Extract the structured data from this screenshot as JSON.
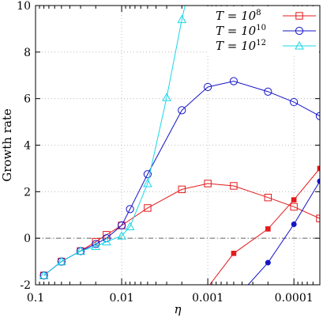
{
  "chart_data": {
    "type": "line",
    "title": "",
    "xlabel": "η",
    "ylabel": "Growth rate",
    "x_scale": "log",
    "x_reversed": true,
    "xlim": [
      0.1,
      5e-05
    ],
    "ylim": [
      -2,
      10
    ],
    "x_ticks": [
      0.1,
      0.01,
      0.001,
      0.0001
    ],
    "x_tick_labels": [
      "0.1",
      "0.01",
      "0.001",
      "0.0001"
    ],
    "y_ticks": [
      -2,
      0,
      2,
      4,
      6,
      8,
      10
    ],
    "y_tick_labels": [
      "-2",
      "0",
      "2",
      "4",
      "6",
      "8",
      "10"
    ],
    "grid": true,
    "zero_line": true,
    "legend_position": "top-right",
    "series": [
      {
        "name_prefix": "T = 10",
        "name_exp": "8",
        "color": "#e41a1c",
        "marker": "square",
        "x": [
          0.08,
          0.05,
          0.03,
          0.02,
          0.015,
          0.01,
          0.005,
          0.002,
          0.001,
          0.0005,
          0.0002,
          0.0001,
          5e-05
        ],
        "y": [
          -1.6,
          -1.0,
          -0.55,
          -0.15,
          0.15,
          0.55,
          1.3,
          2.1,
          2.35,
          2.25,
          1.75,
          1.35,
          0.85
        ]
      },
      {
        "name_prefix": "T = 10",
        "name_exp": "10",
        "color": "#1515c8",
        "marker": "circle",
        "x": [
          0.08,
          0.05,
          0.03,
          0.02,
          0.015,
          0.01,
          0.008,
          0.005,
          0.002,
          0.001,
          0.0005,
          0.0002,
          0.0001,
          5e-05
        ],
        "y": [
          -1.6,
          -1.0,
          -0.55,
          -0.25,
          0.0,
          0.55,
          1.25,
          2.75,
          5.5,
          6.5,
          6.75,
          6.3,
          5.85,
          5.25
        ]
      },
      {
        "name_prefix": "T = 10",
        "name_exp": "12",
        "color": "#19d7e6",
        "marker": "triangle",
        "x": [
          0.08,
          0.05,
          0.03,
          0.02,
          0.015,
          0.01,
          0.008,
          0.005,
          0.003,
          0.002,
          0.0016
        ],
        "y": [
          -1.6,
          -1.0,
          -0.55,
          -0.35,
          -0.15,
          0.1,
          0.5,
          2.35,
          6.05,
          9.4,
          11.0
        ]
      }
    ],
    "secondary_lines": [
      {
        "color": "#e41a1c",
        "marker": "filled-square",
        "x": [
          0.00095,
          0.0005,
          0.0002,
          0.0001,
          5e-05
        ],
        "y": [
          -2.0,
          -0.65,
          0.4,
          1.65,
          3.0
        ]
      },
      {
        "color": "#1515c8",
        "marker": "filled-circle",
        "x": [
          0.00034,
          0.0002,
          0.0001,
          5e-05
        ],
        "y": [
          -2.0,
          -1.05,
          0.6,
          2.45
        ]
      }
    ]
  }
}
